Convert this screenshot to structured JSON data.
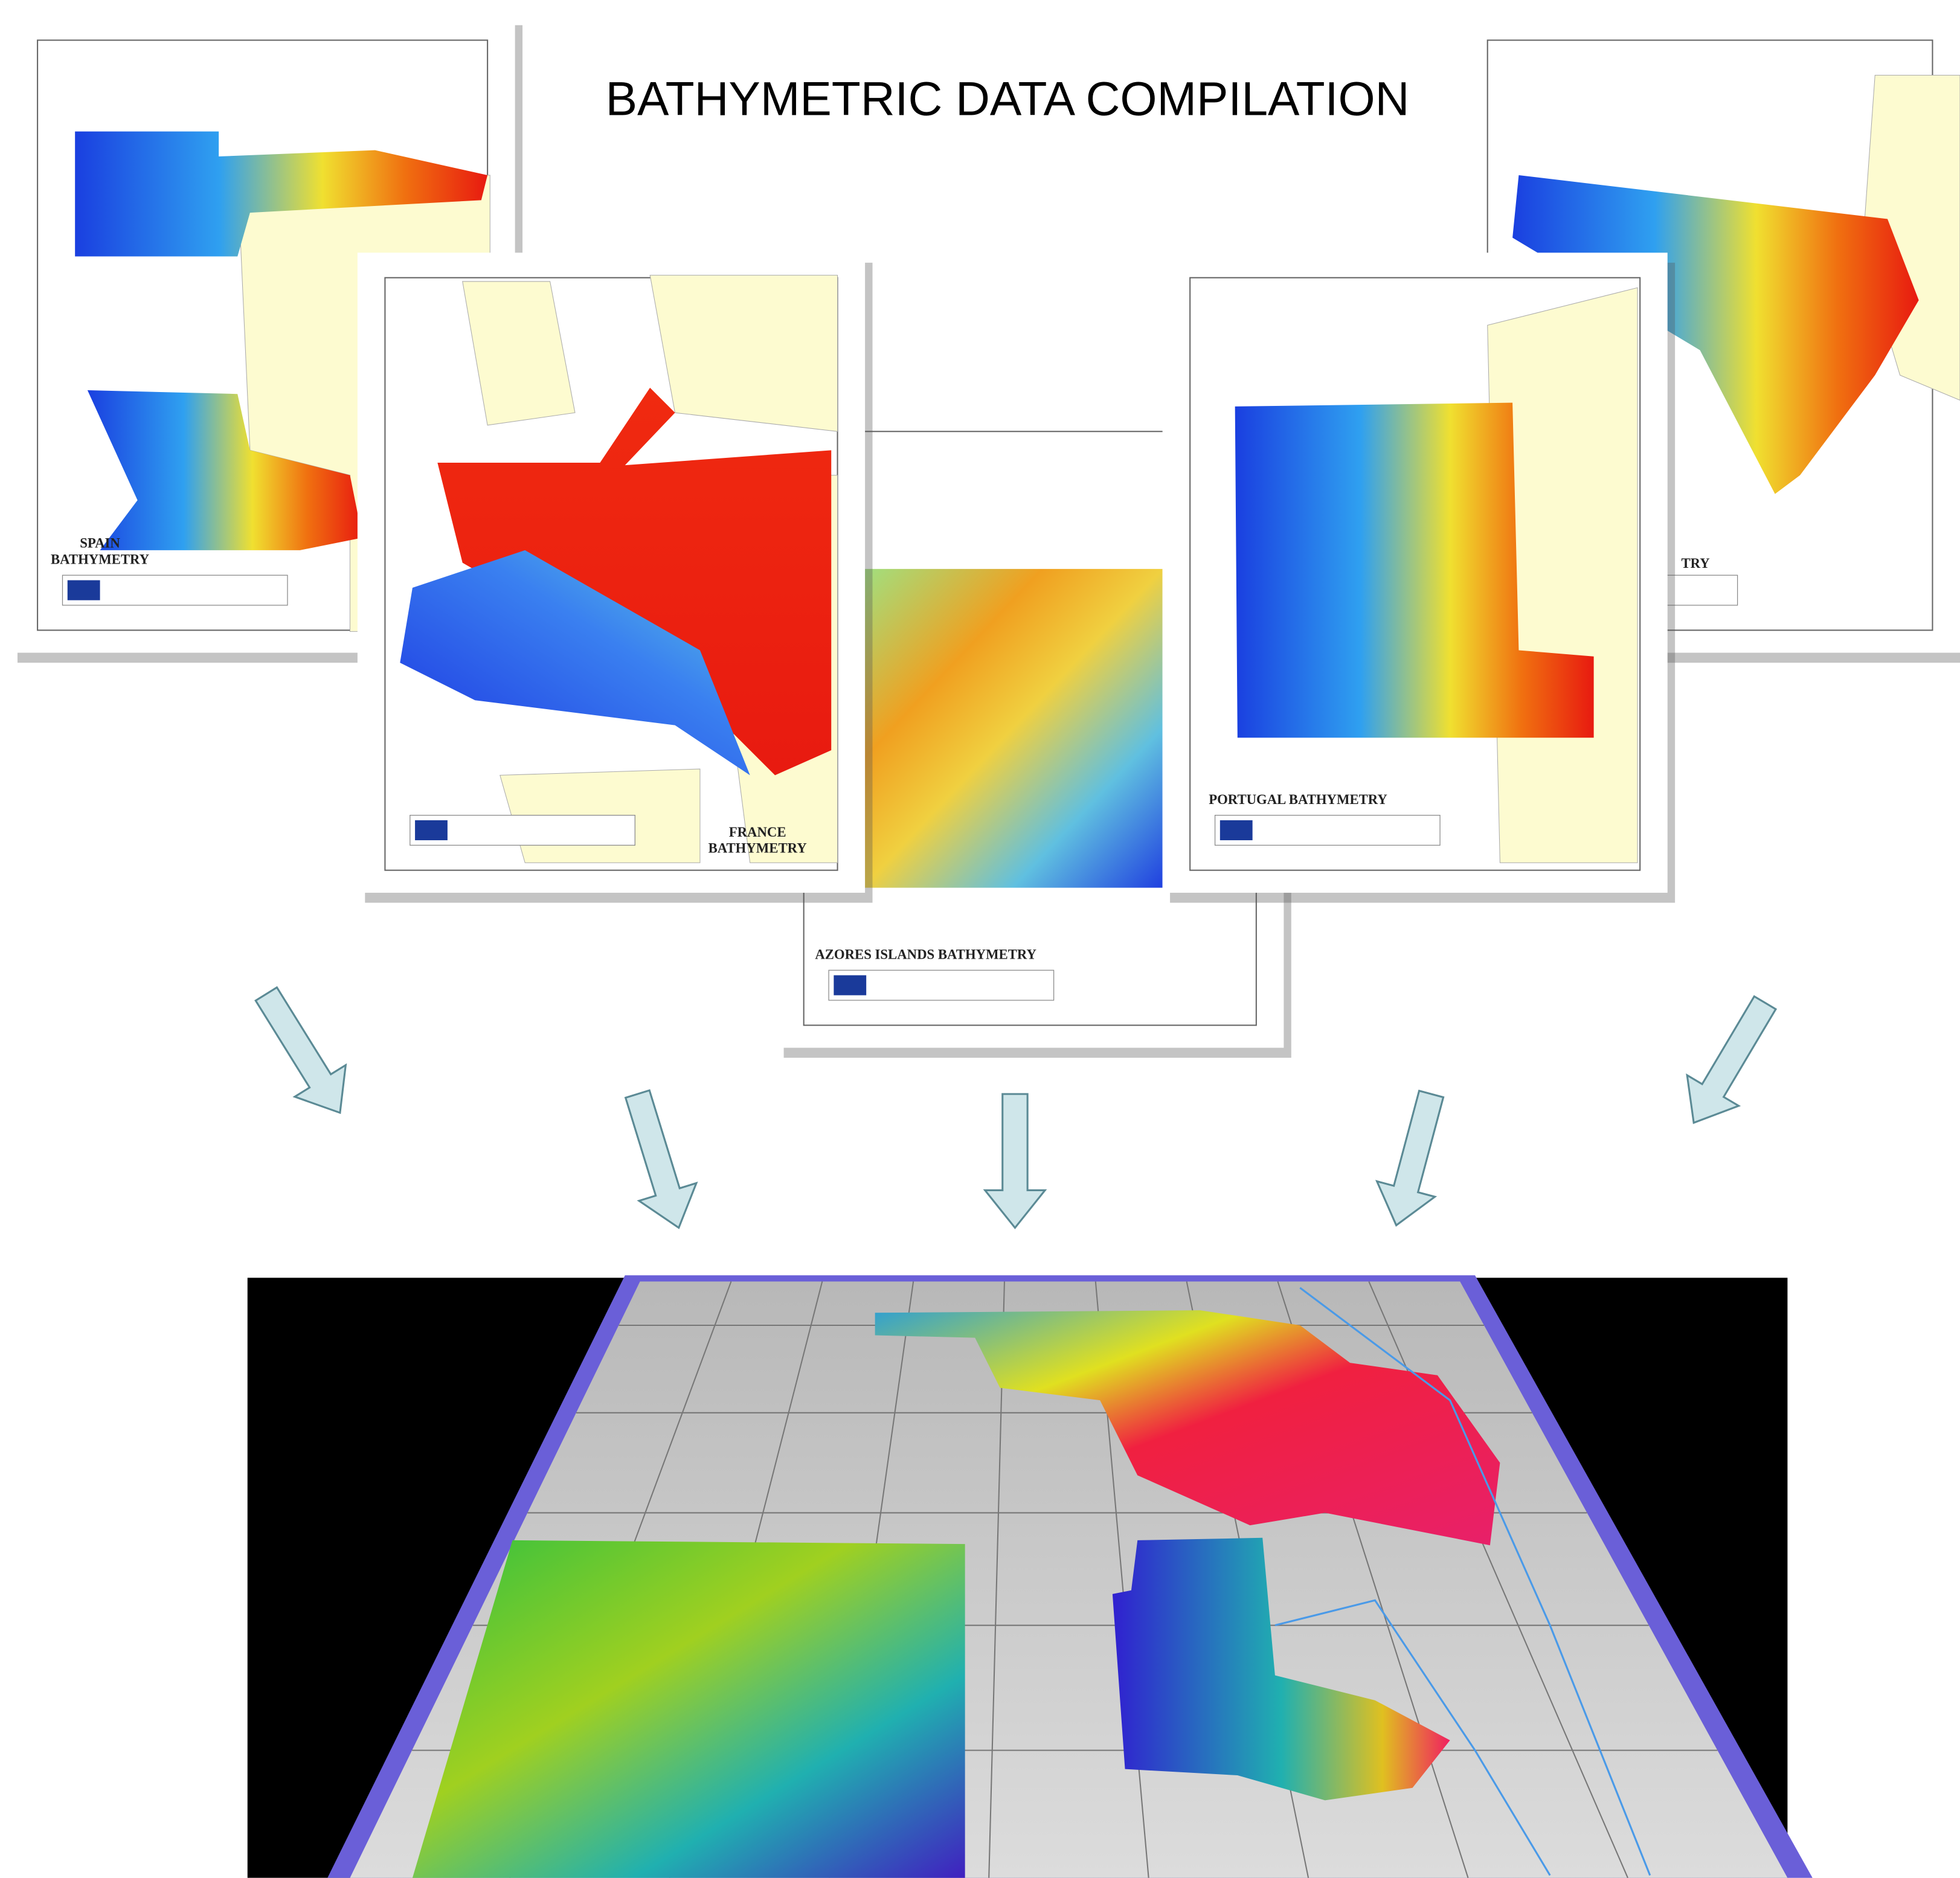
{
  "title": "BATHYMETRIC DATA COMPILATION",
  "panels": [
    {
      "label": [
        "SPAIN",
        "BATHYMETRY"
      ]
    },
    {
      "label": [
        "TRY"
      ]
    },
    {
      "label": [
        "AZORES ISLANDS BATHYMETRY"
      ]
    },
    {
      "label": [
        "FRANCE",
        "BATHYMETRY"
      ]
    },
    {
      "label": [
        "PORTUGAL BATHYMETRY"
      ]
    }
  ]
}
